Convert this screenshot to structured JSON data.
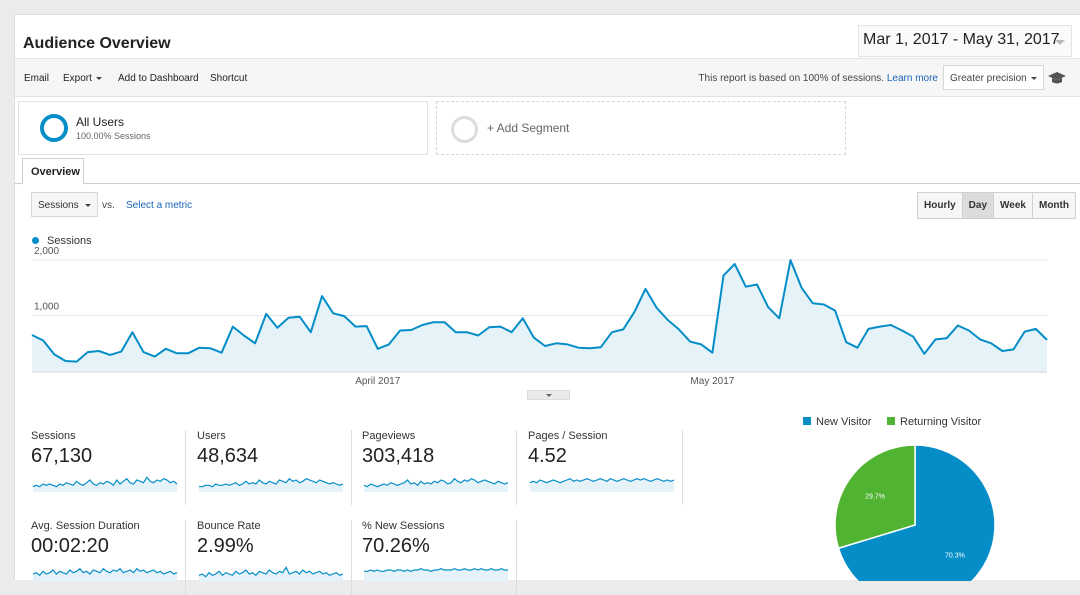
{
  "header": {
    "title": "Audience Overview",
    "date_range": "Mar 1, 2017 - May 31, 2017"
  },
  "toolbar": {
    "email": "Email",
    "export": "Export",
    "add_to_dashboard": "Add to Dashboard",
    "shortcut": "Shortcut",
    "precision_note": "This report is based on 100% of sessions.",
    "learn_more": "Learn more",
    "precision_select": "Greater precision",
    "help_icon": "graduation-cap-icon"
  },
  "segments": {
    "active": {
      "name": "All Users",
      "detail": "100.00% Sessions",
      "ring_color": "#058dc7"
    },
    "add_label": "+ Add Segment"
  },
  "tabs": [
    {
      "label": "Overview",
      "active": true
    }
  ],
  "metric_controls": {
    "primary_metric": "Sessions",
    "vs_label": "vs.",
    "select_metric": "Select a metric"
  },
  "granularity": {
    "options": [
      "Hourly",
      "Day",
      "Week",
      "Month"
    ],
    "selected": "Day"
  },
  "colors": {
    "accent": "#058dc7",
    "area_fill": "#e5f3f9",
    "new_visitor": "#058dc7",
    "returning_visitor": "#50b432"
  },
  "chart_data": [
    {
      "type": "line",
      "legend": "Sessions",
      "y_ticks": [
        "2,000",
        "1,000"
      ],
      "ylim": [
        0,
        2200
      ],
      "x_ticks": [
        {
          "label": "April 2017",
          "index": 31
        },
        {
          "label": "May 2017",
          "index": 61
        }
      ],
      "grid": true,
      "values": [
        650,
        550,
        300,
        180,
        170,
        340,
        360,
        290,
        350,
        700,
        340,
        260,
        400,
        320,
        320,
        420,
        410,
        330,
        800,
        640,
        500,
        1030,
        780,
        960,
        980,
        700,
        1350,
        1040,
        990,
        800,
        810,
        400,
        480,
        730,
        740,
        830,
        880,
        880,
        700,
        700,
        640,
        790,
        800,
        700,
        950,
        600,
        450,
        500,
        480,
        420,
        410,
        430,
        700,
        750,
        1060,
        1480,
        1140,
        920,
        750,
        530,
        480,
        330,
        1720,
        1930,
        1520,
        1560,
        1150,
        950,
        2000,
        1500,
        1220,
        1200,
        1090,
        520,
        420,
        760,
        800,
        830,
        730,
        620,
        310,
        570,
        590,
        820,
        730,
        570,
        500,
        360,
        390,
        710,
        760,
        560
      ]
    },
    {
      "type": "pie",
      "labels": [
        "New Visitor",
        "Returning Visitor"
      ],
      "values": [
        70.3,
        29.7
      ],
      "value_labels": [
        "70.3%",
        "29.7%"
      ],
      "colors": [
        "#058dc7",
        "#50b432"
      ],
      "legend_position": "top"
    }
  ],
  "stats": [
    {
      "label": "Sessions",
      "value": "67,130",
      "spark": [
        4,
        5,
        4,
        6,
        5,
        6,
        5,
        4,
        6,
        5,
        7,
        6,
        5,
        8,
        6,
        5,
        7,
        9,
        6,
        5,
        7,
        6,
        8,
        7,
        5,
        9,
        6,
        8,
        10,
        7,
        6,
        9,
        8,
        7,
        11,
        8,
        7,
        9,
        8,
        10,
        9,
        7,
        8,
        6
      ]
    },
    {
      "label": "Users",
      "value": "48,634",
      "spark": [
        4,
        4,
        5,
        5,
        4,
        6,
        5,
        5,
        6,
        5,
        6,
        7,
        5,
        6,
        8,
        6,
        7,
        6,
        9,
        7,
        6,
        8,
        7,
        6,
        9,
        8,
        7,
        10,
        8,
        9,
        7,
        8,
        10,
        9,
        8,
        7,
        9,
        8,
        7,
        6,
        7,
        6,
        5,
        6
      ]
    },
    {
      "label": "Pageviews",
      "value": "303,418",
      "spark": [
        5,
        4,
        6,
        5,
        4,
        5,
        6,
        5,
        7,
        6,
        5,
        6,
        7,
        9,
        6,
        7,
        5,
        8,
        6,
        7,
        6,
        8,
        7,
        9,
        8,
        6,
        7,
        10,
        8,
        7,
        9,
        8,
        10,
        9,
        7,
        8,
        9,
        8,
        7,
        6,
        8,
        7,
        6,
        7
      ]
    },
    {
      "label": "Pages / Session",
      "value": "4.52",
      "spark": [
        7,
        8,
        7,
        9,
        8,
        7,
        8,
        9,
        8,
        7,
        8,
        9,
        10,
        8,
        9,
        8,
        9,
        10,
        9,
        8,
        9,
        10,
        9,
        8,
        10,
        9,
        8,
        9,
        10,
        9,
        8,
        9,
        10,
        9,
        10,
        9,
        8,
        9,
        10,
        9,
        8,
        9,
        8,
        9
      ]
    },
    {
      "label": "Avg. Session Duration",
      "value": "00:02:20",
      "spark": [
        6,
        7,
        5,
        8,
        6,
        7,
        9,
        6,
        8,
        7,
        6,
        9,
        7,
        8,
        10,
        7,
        8,
        6,
        9,
        8,
        7,
        10,
        8,
        7,
        9,
        8,
        10,
        7,
        8,
        9,
        7,
        10,
        8,
        9,
        7,
        8,
        9,
        7,
        8,
        6,
        7,
        8,
        6,
        7
      ]
    },
    {
      "label": "Bounce Rate",
      "value": "2.99%",
      "spark": [
        5,
        6,
        4,
        7,
        5,
        6,
        8,
        5,
        7,
        6,
        5,
        8,
        6,
        7,
        9,
        6,
        7,
        5,
        8,
        7,
        6,
        9,
        7,
        6,
        8,
        7,
        11,
        6,
        7,
        8,
        6,
        9,
        7,
        8,
        6,
        7,
        8,
        6,
        7,
        5,
        6,
        7,
        5,
        6
      ]
    },
    {
      "label": "% New Sessions",
      "value": "70.26%",
      "spark": [
        8,
        8,
        9,
        8,
        9,
        8,
        8,
        9,
        9,
        8,
        9,
        9,
        8,
        9,
        8,
        9,
        9,
        10,
        9,
        9,
        8,
        9,
        9,
        10,
        9,
        9,
        9,
        10,
        9,
        9,
        10,
        9,
        9,
        10,
        9,
        10,
        9,
        9,
        10,
        9,
        9,
        10,
        9,
        9
      ]
    }
  ]
}
